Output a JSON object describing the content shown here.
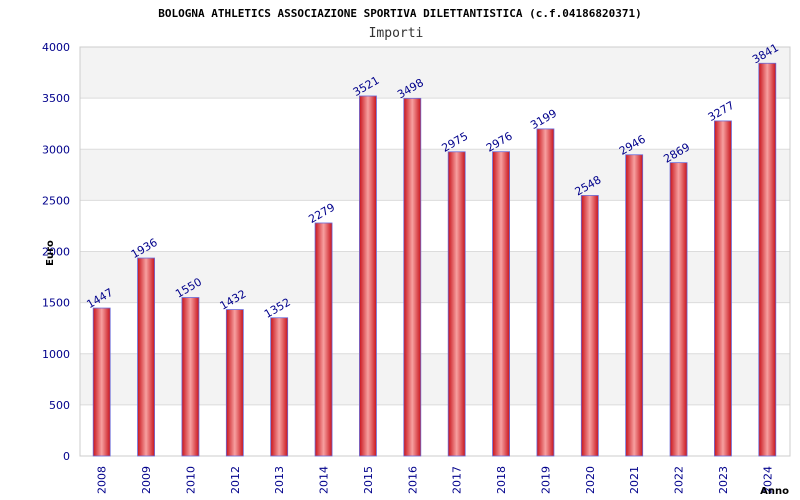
{
  "chart_data": {
    "type": "bar",
    "title": "BOLOGNA ATHLETICS ASSOCIAZIONE SPORTIVA DILETTANTISTICA (c.f.04186820371)",
    "subtitle": "Importi",
    "xlabel": "Anno",
    "ylabel": "Euro",
    "categories": [
      "2008",
      "2009",
      "2010",
      "2012",
      "2013",
      "2014",
      "2015",
      "2016",
      "2017",
      "2018",
      "2019",
      "2020",
      "2021",
      "2022",
      "2023",
      "2024"
    ],
    "values": [
      1447,
      1936,
      1550,
      1432,
      1352,
      2279,
      3521,
      3498,
      2975,
      2976,
      3199,
      2548,
      2946,
      2869,
      3277,
      3841
    ],
    "ylim": [
      0,
      4000
    ],
    "yticks": [
      0,
      500,
      1000,
      1500,
      2000,
      2500,
      3000,
      3500,
      4000
    ],
    "grid": true,
    "legend": "none",
    "colors": {
      "bar_dark": "#c8141c",
      "bar_light": "#f7a0a0",
      "bar_edge": "#6a6ad8",
      "axis_text": "#00008b",
      "band_alt": "#f3f3f3",
      "grid": "#dcdcdc"
    }
  }
}
